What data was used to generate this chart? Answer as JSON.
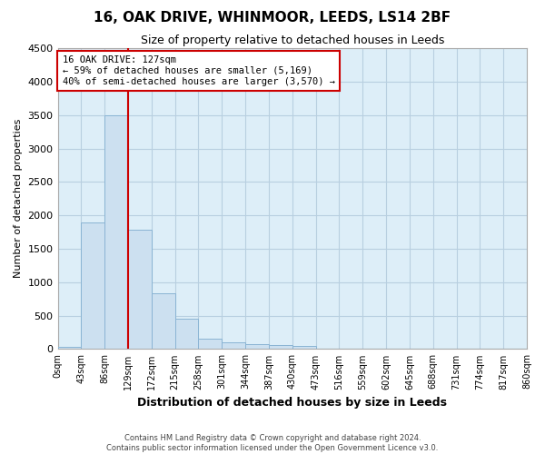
{
  "title": "16, OAK DRIVE, WHINMOOR, LEEDS, LS14 2BF",
  "subtitle": "Size of property relative to detached houses in Leeds",
  "xlabel": "Distribution of detached houses by size in Leeds",
  "ylabel": "Number of detached properties",
  "footer_line1": "Contains HM Land Registry data © Crown copyright and database right 2024.",
  "footer_line2": "Contains public sector information licensed under the Open Government Licence v3.0.",
  "bar_values": [
    30,
    1900,
    3500,
    1780,
    830,
    450,
    160,
    100,
    70,
    55,
    40,
    0,
    0,
    0,
    0,
    0,
    0,
    0,
    0,
    0
  ],
  "bar_labels": [
    "0sqm",
    "43sqm",
    "86sqm",
    "129sqm",
    "172sqm",
    "215sqm",
    "258sqm",
    "301sqm",
    "344sqm",
    "387sqm",
    "430sqm",
    "473sqm",
    "516sqm",
    "559sqm",
    "602sqm",
    "645sqm",
    "688sqm",
    "731sqm",
    "774sqm",
    "817sqm",
    "860sqm"
  ],
  "bar_color": "#cce0f0",
  "bar_edge_color": "#8ab4d4",
  "grid_color": "#b8cfe0",
  "background_color": "#ddeef8",
  "ylim": [
    0,
    4500
  ],
  "yticks": [
    0,
    500,
    1000,
    1500,
    2000,
    2500,
    3000,
    3500,
    4000,
    4500
  ],
  "annotation_text_line1": "16 OAK DRIVE: 127sqm",
  "annotation_text_line2": "← 59% of detached houses are smaller (5,169)",
  "annotation_text_line3": "40% of semi-detached houses are larger (3,570) →",
  "annotation_box_color": "#ffffff",
  "annotation_box_edge": "#cc0000",
  "property_line_color": "#cc0000"
}
